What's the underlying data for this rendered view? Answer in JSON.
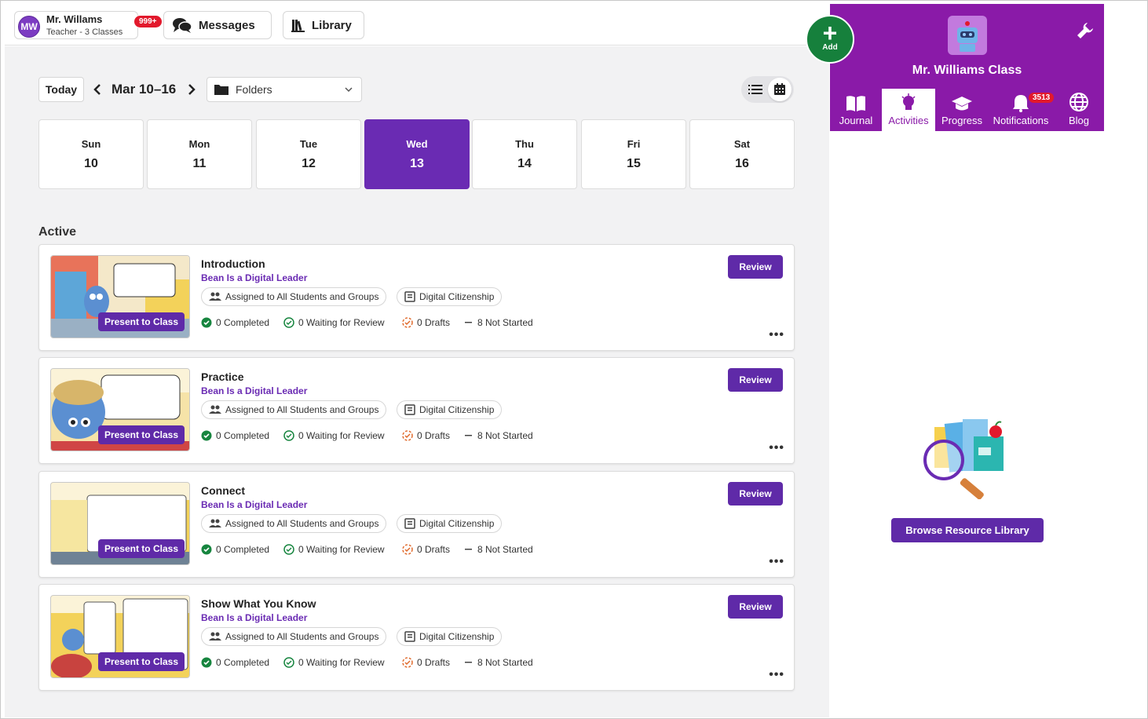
{
  "header": {
    "user": {
      "initials": "MW",
      "name": "Mr. Willams",
      "subtitle": "Teacher - 3 Classes",
      "badge": "999+"
    },
    "messages_label": "Messages",
    "library_label": "Library"
  },
  "toolbar": {
    "today_label": "Today",
    "date_range": "Mar 10–16",
    "folder_select": "Folders"
  },
  "week": [
    {
      "name": "Sun",
      "date": "10"
    },
    {
      "name": "Mon",
      "date": "11"
    },
    {
      "name": "Tue",
      "date": "12"
    },
    {
      "name": "Wed",
      "date": "13",
      "selected": true
    },
    {
      "name": "Thu",
      "date": "14"
    },
    {
      "name": "Fri",
      "date": "15"
    },
    {
      "name": "Sat",
      "date": "16"
    }
  ],
  "section_title": "Active",
  "activities": [
    {
      "title": "Introduction",
      "subtitle": "Bean Is a Digital Leader",
      "assigned": "Assigned to All Students and Groups",
      "tag": "Digital Citizenship",
      "present": "Present to Class",
      "review": "Review",
      "stats": {
        "completed": "0 Completed",
        "waiting": "0 Waiting for Review",
        "drafts": "0 Drafts",
        "not_started": "8 Not Started"
      }
    },
    {
      "title": "Practice",
      "subtitle": "Bean Is a Digital Leader",
      "assigned": "Assigned to All Students and Groups",
      "tag": "Digital Citizenship",
      "present": "Present to Class",
      "review": "Review",
      "stats": {
        "completed": "0 Completed",
        "waiting": "0 Waiting for Review",
        "drafts": "0 Drafts",
        "not_started": "8 Not Started"
      }
    },
    {
      "title": "Connect",
      "subtitle": "Bean Is a Digital Leader",
      "assigned": "Assigned to All Students and Groups",
      "tag": "Digital Citizenship",
      "present": "Present to Class",
      "review": "Review",
      "stats": {
        "completed": "0 Completed",
        "waiting": "0 Waiting for Review",
        "drafts": "0 Drafts",
        "not_started": "8 Not Started"
      }
    },
    {
      "title": "Show What You Know",
      "subtitle": "Bean Is a Digital Leader",
      "assigned": "Assigned to All Students and Groups",
      "tag": "Digital Citizenship",
      "present": "Present to Class",
      "review": "Review",
      "stats": {
        "completed": "0 Completed",
        "waiting": "0 Waiting for Review",
        "drafts": "0 Drafts",
        "not_started": "8 Not Started"
      }
    }
  ],
  "class_panel": {
    "add_label": "Add",
    "class_name": "Mr. Williams Class",
    "tabs": [
      {
        "label": "Journal"
      },
      {
        "label": "Activities",
        "active": true
      },
      {
        "label": "Progress"
      },
      {
        "label": "Notifications",
        "badge": "3513"
      },
      {
        "label": "Blog"
      }
    ],
    "browse_label": "Browse Resource Library"
  },
  "colors": {
    "brand_purple": "#6a2bb3",
    "class_header": "#8a1aa8",
    "add_green": "#16803c",
    "alert_red": "#e2192c"
  }
}
